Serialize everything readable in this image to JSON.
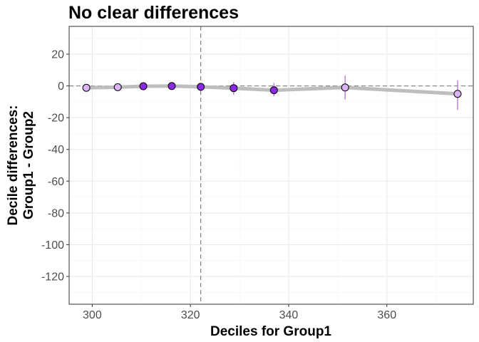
{
  "chart_data": {
    "type": "scatter",
    "title": "No clear differences",
    "xlabel": "Deciles for Group1",
    "ylabel_lines": [
      "Decile differences:",
      "Group1 - Group2"
    ],
    "xlim": [
      295.3,
      377.6
    ],
    "ylim": [
      -137.5,
      37.5
    ],
    "x_ticks": [
      300,
      320,
      340,
      360
    ],
    "y_ticks": [
      20,
      0,
      -20,
      -40,
      -60,
      -80,
      -100,
      -120
    ],
    "grid": true,
    "reference_lines": {
      "x": 322.1,
      "y": 0
    },
    "colors": {
      "line": "#bebebe",
      "error_bar": "#c77dde",
      "point_dark": "#8a2be2",
      "point_light": "#d9b3f2",
      "reference": "#808080",
      "grid_major": "#ebebeb",
      "panel_border": "#333333"
    },
    "points": [
      {
        "decile": 1,
        "x": 298.8,
        "y": -1.2,
        "lo": -2.4,
        "hi": 0.1,
        "fill": "light"
      },
      {
        "decile": 2,
        "x": 305.2,
        "y": -0.8,
        "lo": -2.0,
        "hi": 0.5,
        "fill": "light"
      },
      {
        "decile": 3,
        "x": 310.4,
        "y": -0.2,
        "lo": -1.5,
        "hi": 1.2,
        "fill": "dark"
      },
      {
        "decile": 4,
        "x": 316.2,
        "y": -0.1,
        "lo": -1.4,
        "hi": 1.4,
        "fill": "dark"
      },
      {
        "decile": 5,
        "x": 322.1,
        "y": -0.6,
        "lo": -2.0,
        "hi": 0.8,
        "fill": "dark"
      },
      {
        "decile": 6,
        "x": 328.8,
        "y": -1.4,
        "lo": -5.5,
        "hi": 2.5,
        "fill": "dark"
      },
      {
        "decile": 7,
        "x": 337.0,
        "y": -2.7,
        "lo": -6.5,
        "hi": 1.8,
        "fill": "dark"
      },
      {
        "decile": 8,
        "x": 351.5,
        "y": -1.0,
        "lo": -8.5,
        "hi": 6.5,
        "fill": "light"
      },
      {
        "decile": 9,
        "x": 374.4,
        "y": -5.0,
        "lo": -15.0,
        "hi": 3.5,
        "fill": "light"
      }
    ]
  }
}
